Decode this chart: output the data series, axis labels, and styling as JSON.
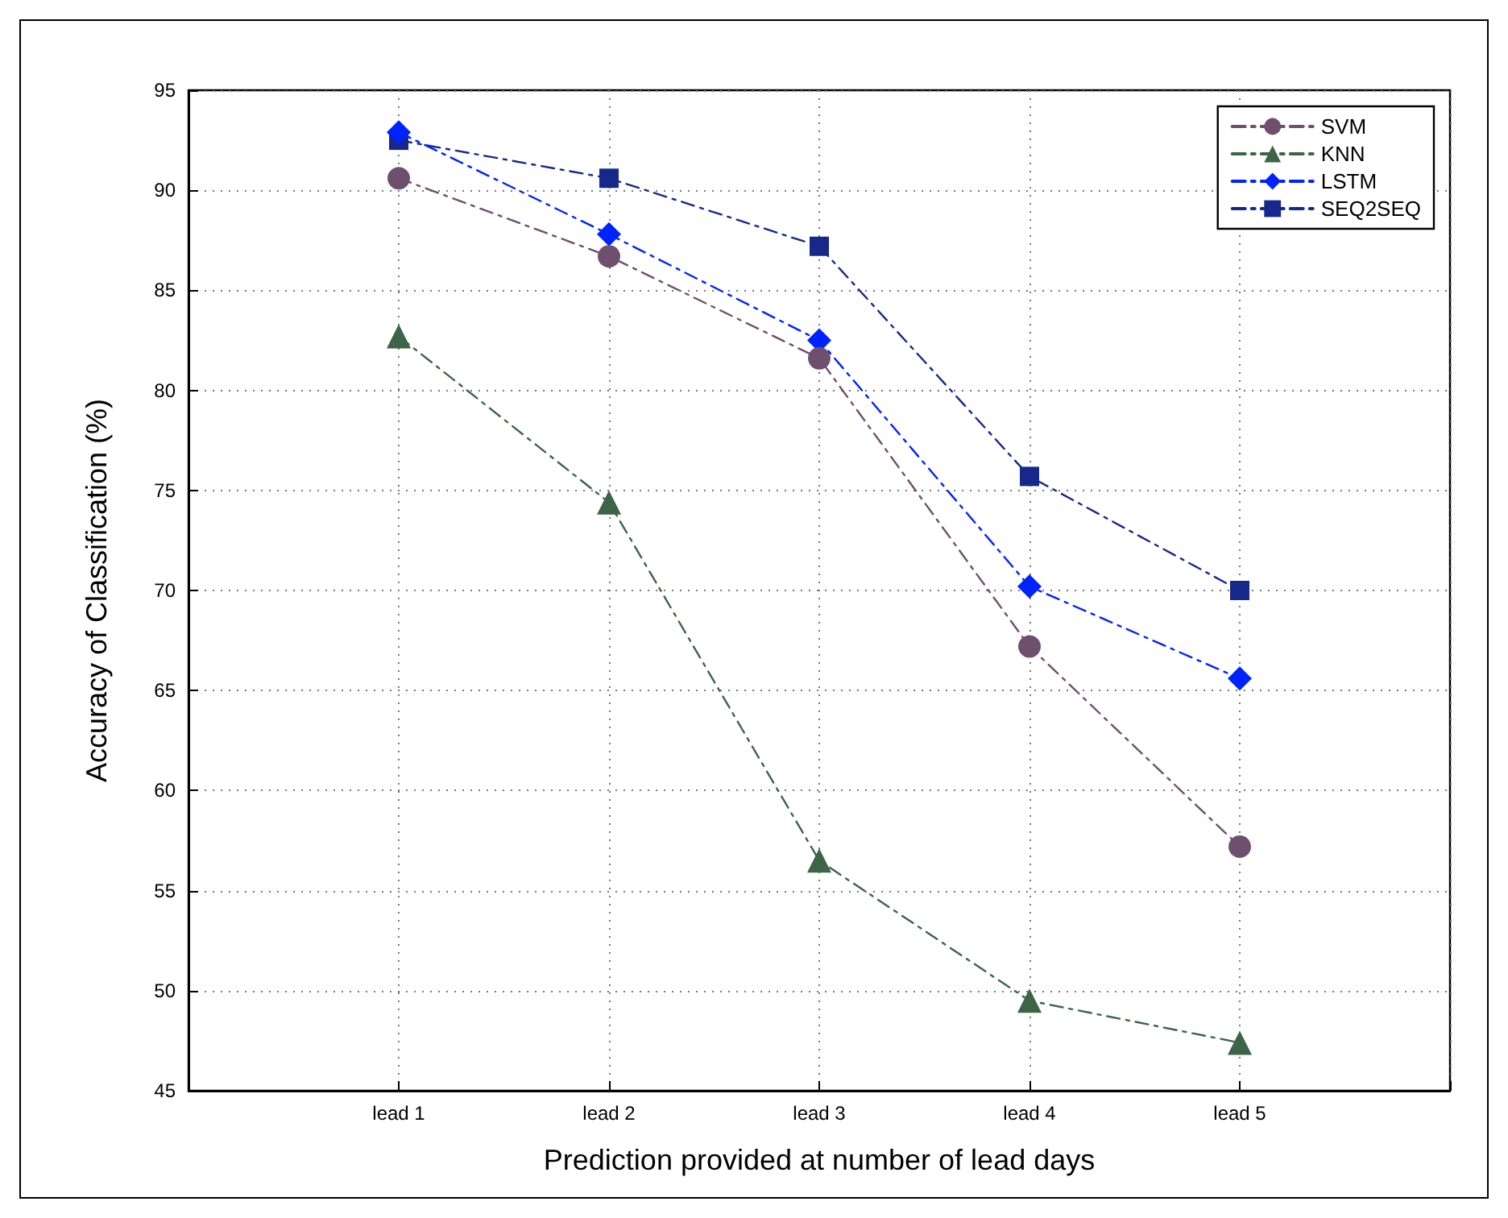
{
  "chart_data": {
    "type": "line",
    "xlabel": "Prediction provided at number of lead days",
    "ylabel": "Accuracy of Classification (%)",
    "categories": [
      null,
      "lead 1",
      "lead 2",
      "lead 3",
      "lead 4",
      "lead 5",
      null
    ],
    "series": [
      {
        "name": "SVM",
        "color": "#6e4f6e",
        "marker": "circle",
        "values": [
          null,
          90.6,
          86.7,
          81.6,
          67.2,
          57.2,
          null
        ]
      },
      {
        "name": "KNN",
        "color": "#3c6446",
        "marker": "triangle",
        "values": [
          null,
          82.7,
          74.4,
          56.5,
          49.5,
          47.4,
          null
        ]
      },
      {
        "name": "LSTM",
        "color": "#0022ff",
        "marker": "diamond",
        "values": [
          null,
          92.9,
          87.8,
          82.5,
          70.2,
          65.6,
          null
        ]
      },
      {
        "name": "SEQ2SEQ",
        "color": "#16288a",
        "marker": "square",
        "values": [
          null,
          92.5,
          90.6,
          87.2,
          75.7,
          70.0,
          null
        ]
      }
    ],
    "ylim": [
      45,
      95
    ],
    "yticks": [
      45,
      50,
      55,
      60,
      65,
      70,
      75,
      80,
      85,
      90,
      95
    ],
    "grid": true,
    "legend": "top right",
    "line_style": "dashed"
  }
}
